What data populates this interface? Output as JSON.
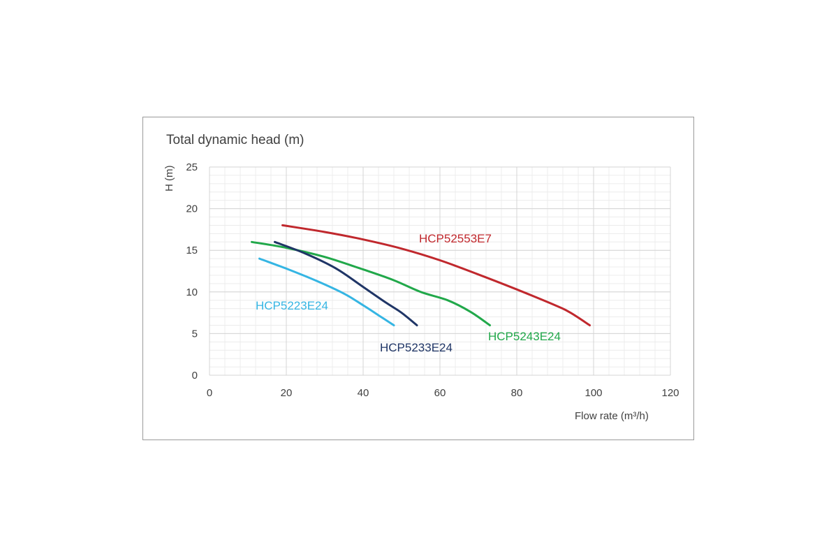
{
  "chart_data": {
    "type": "line",
    "title": "Total dynamic head (m)",
    "ylabel": "H (m)",
    "xlabel": "Flow rate (m³/h)",
    "xlim": [
      0,
      120
    ],
    "ylim": [
      0,
      25
    ],
    "xticks": [
      0,
      20,
      40,
      60,
      80,
      100,
      120
    ],
    "yticks": [
      0,
      5,
      10,
      15,
      20,
      25
    ],
    "grid": true,
    "series": [
      {
        "name": "HCP52553E7",
        "color": "#c0282d",
        "points": [
          [
            19,
            18
          ],
          [
            30,
            17.2
          ],
          [
            40,
            16.3
          ],
          [
            50,
            15.2
          ],
          [
            60,
            13.8
          ],
          [
            70,
            12.1
          ],
          [
            80,
            10.3
          ],
          [
            90,
            8.4
          ],
          [
            94,
            7.5
          ],
          [
            99,
            6
          ]
        ]
      },
      {
        "name": "HCP5243E24",
        "color": "#21a84a",
        "points": [
          [
            11,
            16
          ],
          [
            20,
            15.3
          ],
          [
            30,
            14.2
          ],
          [
            40,
            12.7
          ],
          [
            48,
            11.4
          ],
          [
            55,
            10
          ],
          [
            62,
            9
          ],
          [
            68,
            7.6
          ],
          [
            73,
            6
          ]
        ]
      },
      {
        "name": "HCP5233E24",
        "color": "#1f3566",
        "points": [
          [
            17,
            16
          ],
          [
            25,
            14.6
          ],
          [
            33,
            12.8
          ],
          [
            40,
            10.6
          ],
          [
            46,
            8.7
          ],
          [
            50,
            7.5
          ],
          [
            54,
            6
          ]
        ]
      },
      {
        "name": "HCP5223E24",
        "color": "#35b5e3",
        "points": [
          [
            13,
            14
          ],
          [
            20,
            12.8
          ],
          [
            28,
            11.3
          ],
          [
            35,
            9.8
          ],
          [
            40,
            8.4
          ],
          [
            44,
            7.2
          ],
          [
            48,
            6
          ]
        ]
      }
    ]
  }
}
